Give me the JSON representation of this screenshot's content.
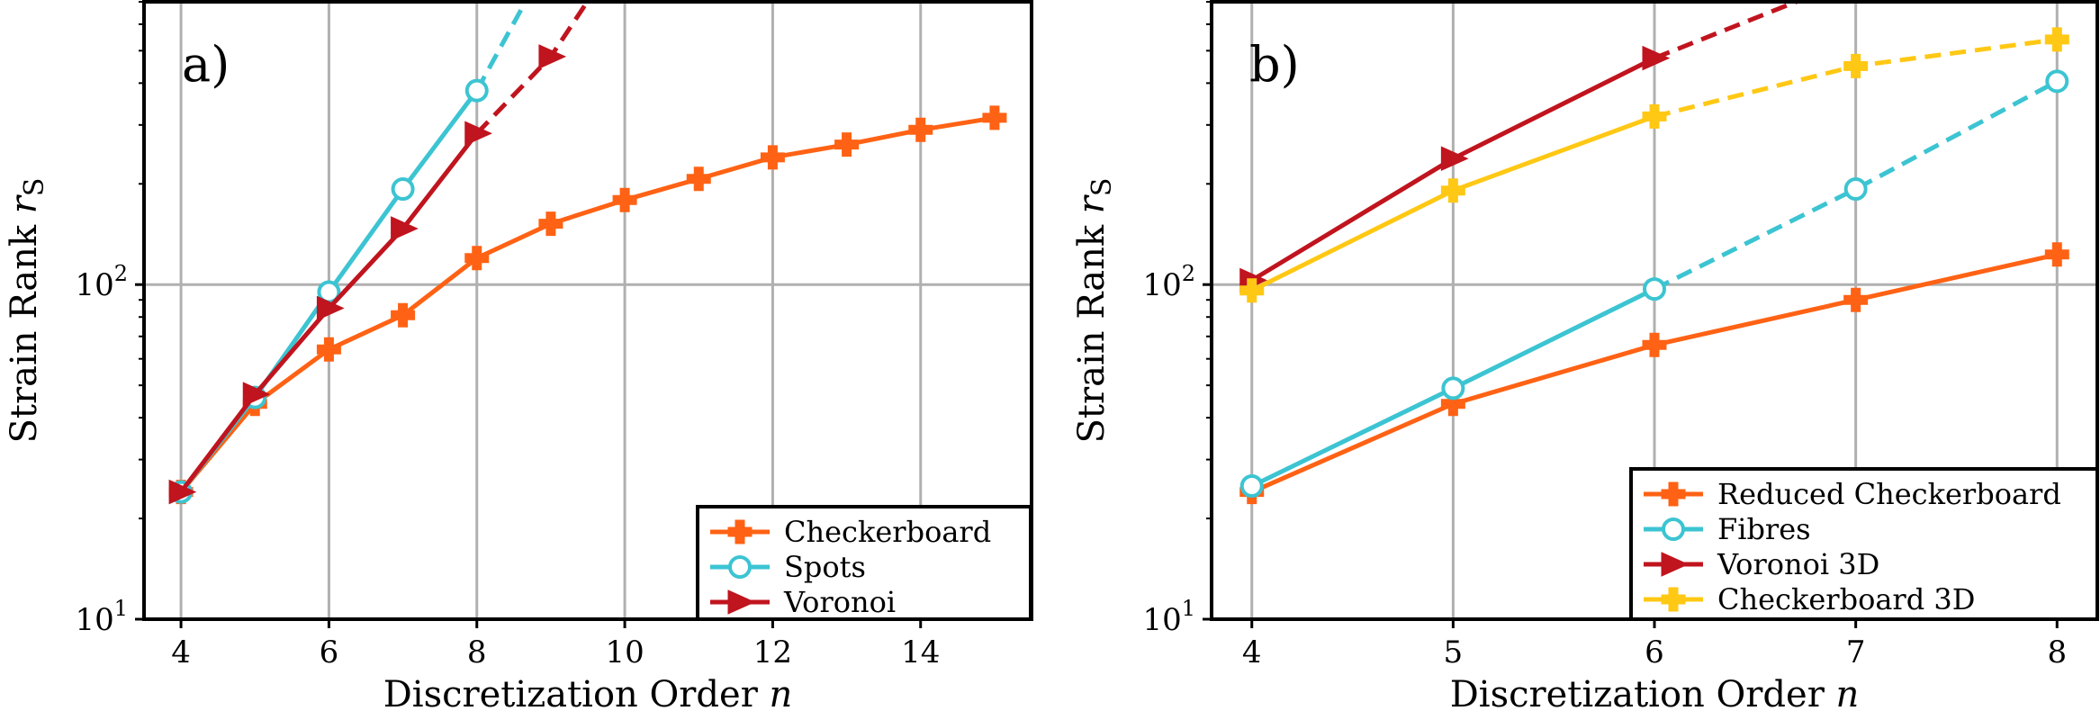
{
  "chart_data": [
    {
      "type": "line",
      "panel_label": "a)",
      "xlabel": "Discretization Order",
      "xlabel_var": "n",
      "ylabel": "Strain Rank",
      "ylabel_var": "r",
      "ylabel_sub": "S",
      "yscale": "log",
      "xlim": [
        3.5,
        15.5
      ],
      "ylim": [
        10,
        700
      ],
      "xticks": [
        "4",
        "6",
        "8",
        "10",
        "12",
        "14"
      ],
      "yticks": [
        {
          "base": "10",
          "exp": "1",
          "value": 10
        },
        {
          "base": "10",
          "exp": "2",
          "value": 100
        }
      ],
      "grid": true,
      "legend_position": "lower-right",
      "series": [
        {
          "name": "Checkerboard",
          "color": "#ff6214",
          "marker": "plus",
          "x": [
            4,
            5,
            6,
            7,
            8,
            9,
            10,
            11,
            12,
            13,
            14,
            15
          ],
          "y": [
            24,
            44,
            64,
            81,
            120,
            152,
            179,
            207,
            240,
            262,
            290,
            315
          ],
          "dashed_from_index": null
        },
        {
          "name": "Spots",
          "color": "#3cc4d2",
          "marker": "circle",
          "x": [
            4,
            5,
            6,
            7,
            8,
            8.8
          ],
          "y": [
            24,
            46,
            95,
            193,
            380,
            800
          ],
          "dashed_from_index": 4
        },
        {
          "name": "Voronoi",
          "color": "#c0141e",
          "marker": "triangle-right",
          "x": [
            4,
            5,
            6,
            7,
            8,
            9,
            9.7
          ],
          "y": [
            24,
            47,
            85,
            147,
            283,
            480,
            820
          ],
          "dashed_from_index": 4
        }
      ]
    },
    {
      "type": "line",
      "panel_label": "b)",
      "xlabel": "Discretization Order",
      "xlabel_var": "n",
      "ylabel": "Strain Rank",
      "ylabel_var": "r",
      "ylabel_sub": "S",
      "yscale": "log",
      "xlim": [
        3.8,
        8.2
      ],
      "ylim": [
        10,
        700
      ],
      "xticks": [
        "4",
        "5",
        "6",
        "7",
        "8"
      ],
      "yticks": [
        {
          "base": "10",
          "exp": "1",
          "value": 10
        },
        {
          "base": "10",
          "exp": "2",
          "value": 100
        }
      ],
      "grid": true,
      "legend_position": "lower-right",
      "series": [
        {
          "name": "Reduced Checkerboard",
          "color": "#ff6214",
          "marker": "plus",
          "x": [
            4,
            5,
            6,
            7,
            8
          ],
          "y": [
            24,
            44,
            66,
            90,
            123
          ],
          "dashed_from_index": null
        },
        {
          "name": "Fibres",
          "color": "#3cc4d2",
          "marker": "circle",
          "x": [
            4,
            5,
            6,
            7,
            8
          ],
          "y": [
            25,
            49,
            97,
            193,
            405
          ],
          "dashed_from_index": 2
        },
        {
          "name": "Voronoi 3D",
          "color": "#c0141e",
          "marker": "triangle-right",
          "x": [
            4,
            5,
            6,
            6.9
          ],
          "y": [
            103,
            238,
            475,
            780
          ],
          "dashed_from_index": 2
        },
        {
          "name": "Checkerboard 3D",
          "color": "#ffc814",
          "marker": "plus",
          "x": [
            4,
            5,
            6,
            7,
            8
          ],
          "y": [
            96,
            191,
            318,
            450,
            540
          ],
          "dashed_from_index": 2
        }
      ]
    }
  ]
}
